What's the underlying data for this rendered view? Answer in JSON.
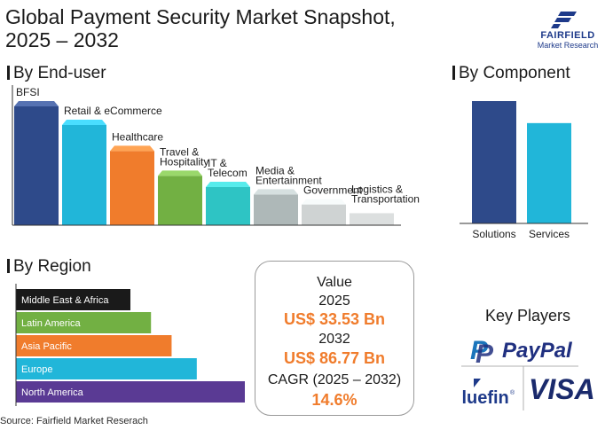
{
  "title": {
    "line1": "Global Payment Security Market Snapshot,",
    "line2": "2025 – 2032"
  },
  "logo": {
    "name": "FAIRFIELD",
    "sub": "Market Research"
  },
  "sections": {
    "end_user": "By End-user",
    "component": "By Component",
    "region": "By Region"
  },
  "chart_data": [
    {
      "type": "bar",
      "name": "By End-user",
      "categories": [
        "BFSI",
        "Retail & eCommerce",
        "Healthcare",
        "Travel & Hospitality",
        "IT & Telecom",
        "Media & Entertainment",
        "Government",
        "Logistics & Transportation"
      ],
      "values": [
        100,
        85,
        64,
        44,
        35,
        29,
        21,
        14
      ],
      "colors": [
        "#2e4a8a",
        "#21b6d9",
        "#f07c2c",
        "#72b043",
        "#2ec4c4",
        "#aeb8b8",
        "#cfd3d3",
        "#dcdfdf"
      ],
      "ylim": [
        0,
        100
      ]
    },
    {
      "type": "bar",
      "name": "By Component",
      "categories": [
        "Solutions",
        "Services"
      ],
      "values": [
        100,
        82
      ],
      "colors": [
        "#2e4a8a",
        "#21b6d9"
      ],
      "ylim": [
        0,
        100
      ]
    },
    {
      "type": "bar",
      "orientation": "horizontal",
      "name": "By Region",
      "categories": [
        "Middle East & Africa",
        "Latin America",
        "Asia Pacific",
        "Europe",
        "North America"
      ],
      "values": [
        50,
        59,
        68,
        79,
        100
      ],
      "colors": [
        "#1a1a1a",
        "#72b043",
        "#f07c2c",
        "#21b6d9",
        "#5a3a94"
      ],
      "xlim": [
        0,
        100
      ]
    }
  ],
  "value_box": {
    "label": "Value",
    "year1": "2025",
    "value1": "US$ 33.53 Bn",
    "year2": "2032",
    "value2": "US$ 86.77 Bn",
    "cagr_label": "CAGR (2025 – 2032)",
    "cagr_value": "14.6%"
  },
  "key_players": {
    "title": "Key Players",
    "logos": [
      "PayPal",
      "Bluefin",
      "VISA"
    ],
    "paypal_mark": "P",
    "bluefin_reg": "®"
  },
  "source": "Source: Fairfield Market Reserach"
}
